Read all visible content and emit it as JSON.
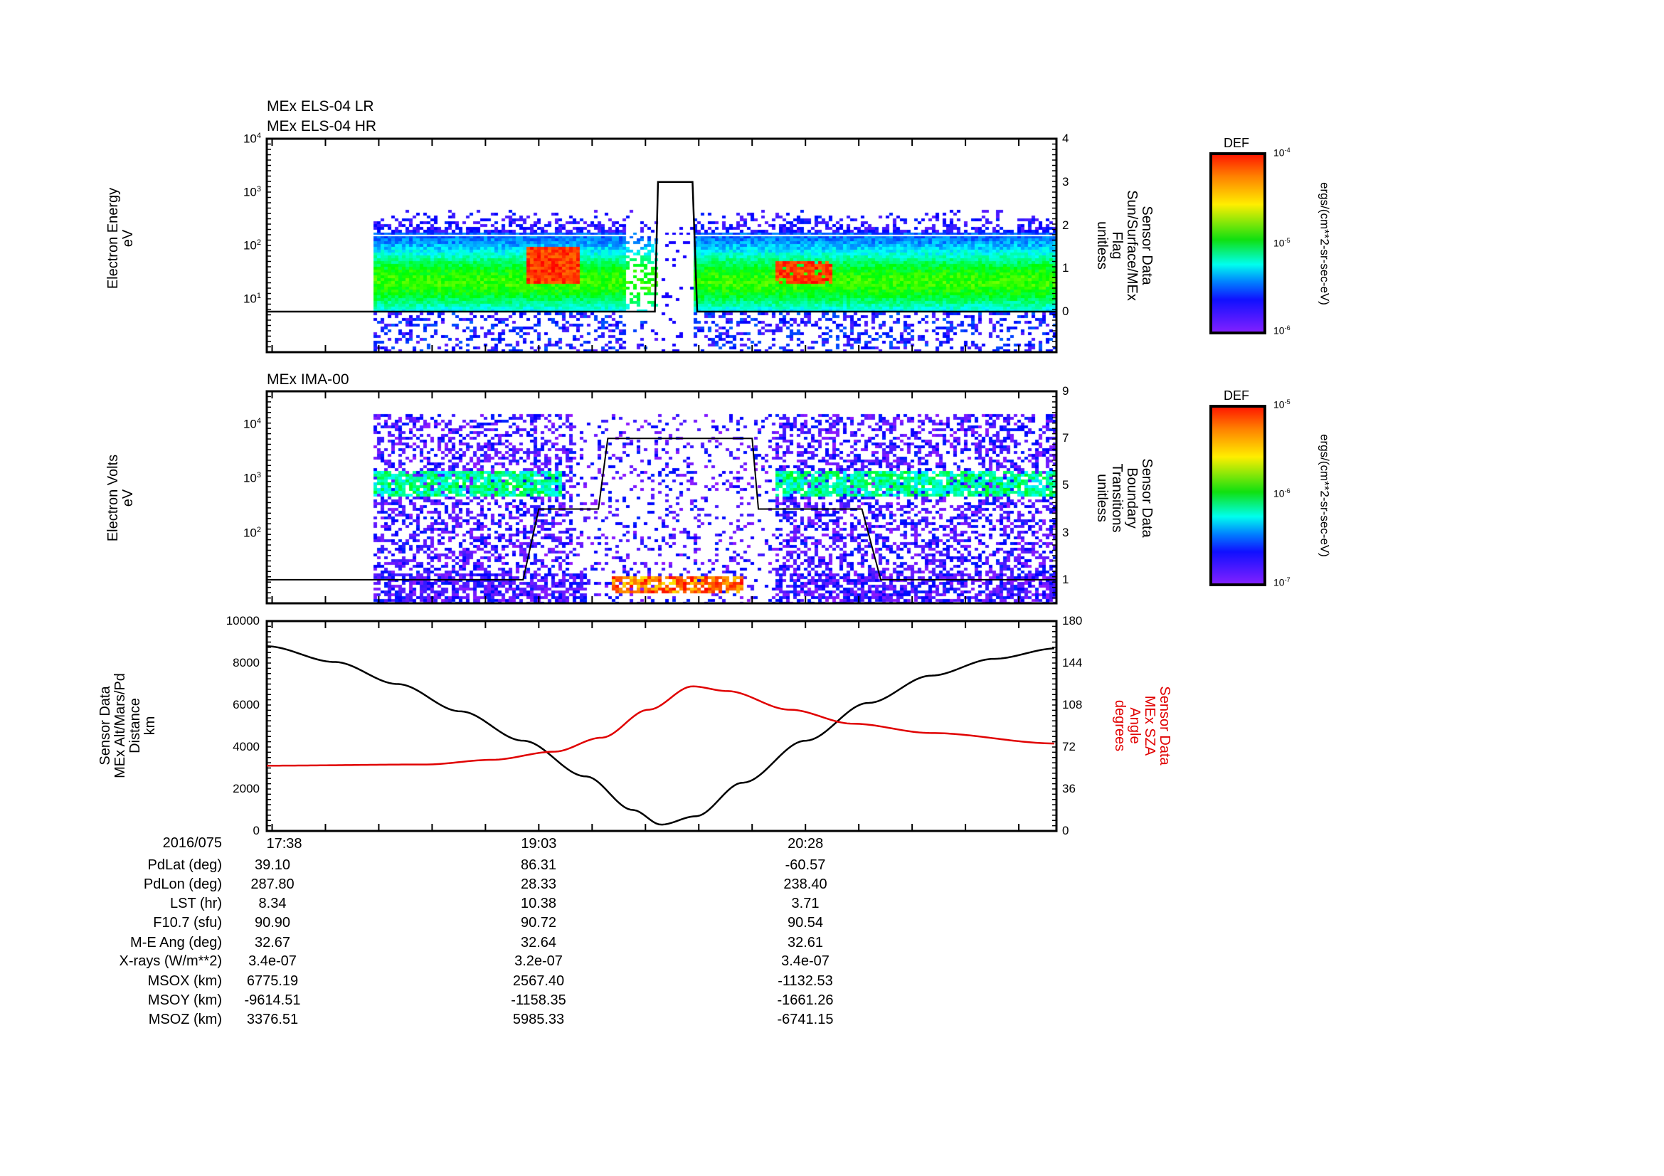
{
  "panel1": {
    "titles": [
      "MEx ELS-04 LR",
      "MEx ELS-04 HR"
    ],
    "ylabel": [
      "Electron Energy",
      "eV"
    ],
    "right_label": [
      "Sensor Data",
      "Sun/Surface/MEx",
      "Flag",
      "unitless"
    ],
    "colorbar": {
      "title": "DEF",
      "ticks": [
        {
          "b": "10",
          "e": "-4"
        },
        {
          "b": "10",
          "e": "-5"
        },
        {
          "b": "10",
          "e": "-6"
        }
      ],
      "units": "ergs/(cm**2-sr-sec-eV)"
    }
  },
  "panel2": {
    "title": "MEx IMA-00",
    "ylabel": [
      "Electron Volts",
      "eV"
    ],
    "right_label": [
      "Sensor Data",
      "Boundary",
      "Transitions",
      "unitless"
    ],
    "colorbar": {
      "title": "DEF",
      "ticks": [
        {
          "b": "10",
          "e": "-5"
        },
        {
          "b": "10",
          "e": "-6"
        },
        {
          "b": "10",
          "e": "-7"
        }
      ],
      "units": "ergs/(cm**2-sr-sec-eV)"
    }
  },
  "panel3": {
    "ylabel": [
      "Sensor Data",
      "MEx Alt/Mars/Pd",
      "Distance",
      "km"
    ],
    "right_label": [
      "Sensor Data",
      "MEx SZA",
      "Angle",
      "degrees"
    ]
  },
  "colors": {
    "alt": "#000000",
    "sza": "#e00000"
  },
  "chart_data": [
    {
      "type": "heatmap",
      "title": "MEx ELS-04 LR / HR",
      "xunit": "minutes since 17:38",
      "xlim": [
        -1.7,
        250
      ],
      "ylabel": "Electron Energy eV",
      "ylim_log10": [
        0,
        4
      ],
      "yticks": [
        {
          "b": "10",
          "e": "1",
          "v": 1
        },
        {
          "b": "10",
          "e": "2",
          "v": 2
        },
        {
          "b": "10",
          "e": "3",
          "v": 3
        },
        {
          "b": "10",
          "e": "4",
          "v": 4
        }
      ],
      "right_axis": {
        "label": "Sun/Surface/MEx Flag",
        "ylim": [
          0,
          4
        ],
        "ticks": [
          "0",
          "1",
          "2",
          "3",
          "4"
        ]
      },
      "flag_series": {
        "t": [
          -1.7,
          122,
          123,
          134,
          135.5,
          250
        ],
        "v": [
          0,
          0,
          3,
          3,
          0,
          0
        ]
      }
    },
    {
      "type": "heatmap",
      "title": "MEx IMA-00",
      "xlim": [
        -1.7,
        250
      ],
      "ylabel": "Electron Volts eV",
      "ylim_log10": [
        0.7,
        4.6
      ],
      "yticks": [
        {
          "b": "10",
          "e": "2",
          "v": 2
        },
        {
          "b": "10",
          "e": "3",
          "v": 3
        },
        {
          "b": "10",
          "e": "4",
          "v": 4
        }
      ],
      "right_axis": {
        "label": "Boundary Transitions",
        "ylim": [
          0,
          9
        ],
        "ticks": [
          "1",
          "3",
          "5",
          "7",
          "9"
        ],
        "tick_values": [
          1,
          3,
          5,
          7,
          9
        ]
      },
      "boundary_series": {
        "t": [
          -1.7,
          80,
          85,
          104,
          107,
          153,
          155,
          188,
          194,
          250
        ],
        "v": [
          1,
          1,
          4,
          4,
          7,
          7,
          4,
          4,
          1,
          1
        ]
      }
    },
    {
      "type": "line",
      "xlim": [
        -1.7,
        250
      ],
      "ylim": [
        0,
        10000
      ],
      "yticks": [
        "0",
        "2000",
        "4000",
        "6000",
        "8000",
        "10000"
      ],
      "y2lim": [
        0,
        180
      ],
      "y2ticks": [
        "0",
        "36",
        "72",
        "108",
        "144",
        "180"
      ],
      "xticks": [
        {
          "t": 0,
          "label": "17:38"
        },
        {
          "t": 85,
          "label": "19:03"
        },
        {
          "t": 170,
          "label": "20:28"
        }
      ],
      "series": [
        {
          "name": "MEx Alt/Mars/Pd Distance (km)",
          "axis": "left",
          "t": [
            -1.7,
            20,
            40,
            60,
            80,
            100,
            115,
            124,
            135,
            150,
            170,
            190,
            210,
            230,
            250
          ],
          "values": [
            8800,
            8050,
            7000,
            5700,
            4300,
            2600,
            1000,
            300,
            700,
            2300,
            4300,
            6100,
            7400,
            8200,
            8700
          ]
        },
        {
          "name": "MEx SZA Angle (degrees)",
          "axis": "right",
          "t": [
            -1.7,
            49,
            70,
            90,
            105,
            120,
            134,
            145,
            165,
            185,
            210,
            250
          ],
          "values": [
            56,
            57,
            61,
            68,
            80,
            104,
            124,
            120,
            104,
            92,
            84,
            75
          ]
        }
      ]
    }
  ],
  "table": {
    "date": "2016/075",
    "rows": [
      {
        "label": "PdLat (deg)",
        "values": [
          "39.10",
          "86.31",
          "-60.57"
        ]
      },
      {
        "label": "PdLon (deg)",
        "values": [
          "287.80",
          "28.33",
          "238.40"
        ]
      },
      {
        "label": "LST (hr)",
        "values": [
          "8.34",
          "10.38",
          "3.71"
        ]
      },
      {
        "label": "F10.7 (sfu)",
        "values": [
          "90.90",
          "90.72",
          "90.54"
        ]
      },
      {
        "label": "M-E Ang (deg)",
        "values": [
          "32.67",
          "32.64",
          "32.61"
        ]
      },
      {
        "label": "X-rays (W/m**2)",
        "values": [
          "3.4e-07",
          "3.2e-07",
          "3.4e-07"
        ]
      },
      {
        "label": "MSOX (km)",
        "values": [
          "6775.19",
          "2567.40",
          "-1132.53"
        ]
      },
      {
        "label": "MSOY (km)",
        "values": [
          "-9614.51",
          "-1158.35",
          "-1661.26"
        ]
      },
      {
        "label": "MSOZ (km)",
        "values": [
          "3376.51",
          "5985.33",
          "-6741.15"
        ]
      }
    ]
  }
}
